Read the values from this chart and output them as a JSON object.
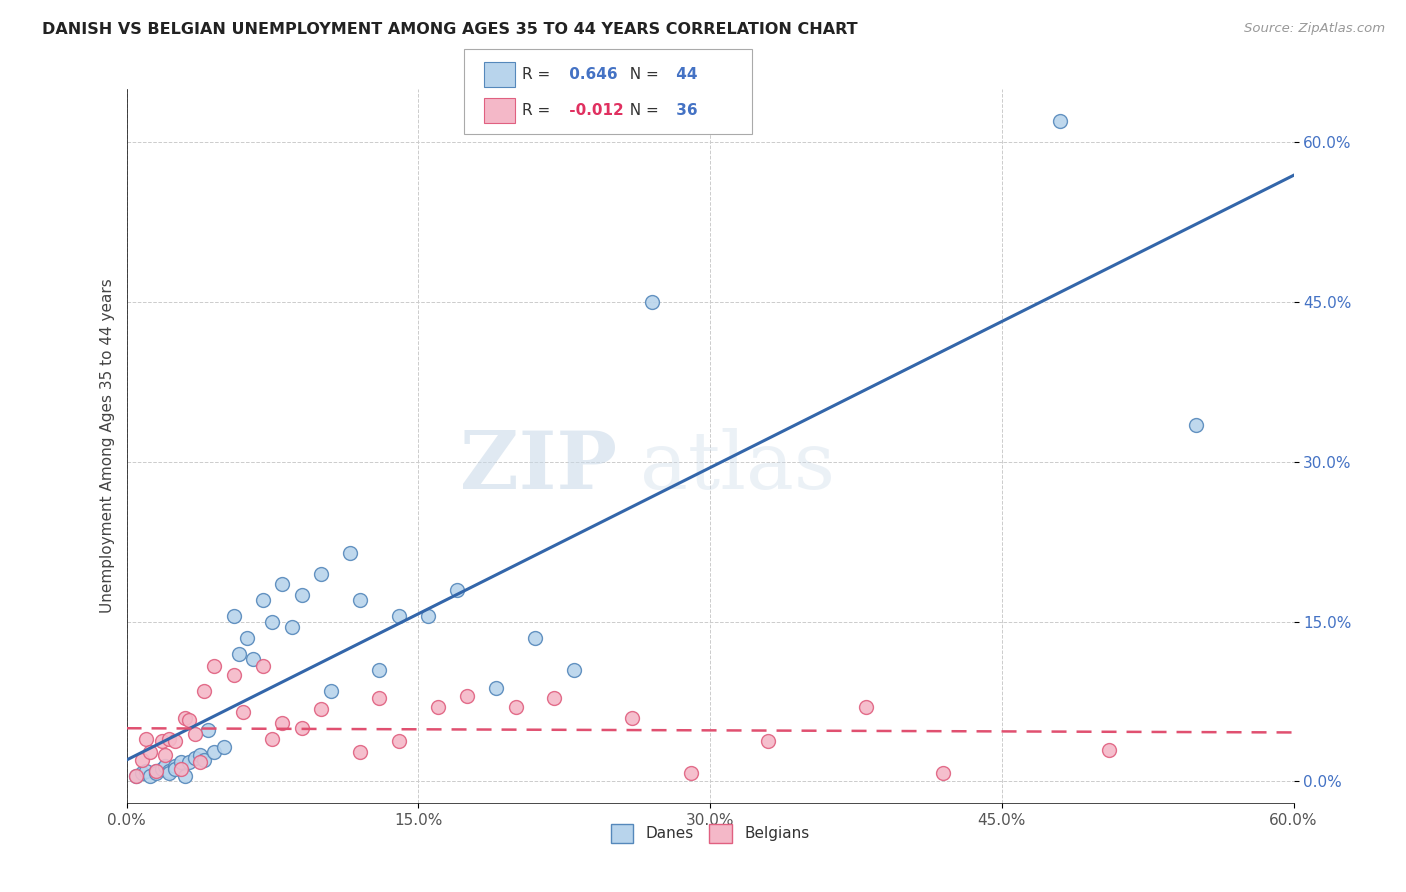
{
  "title": "DANISH VS BELGIAN UNEMPLOYMENT AMONG AGES 35 TO 44 YEARS CORRELATION CHART",
  "source": "Source: ZipAtlas.com",
  "ylabel": "Unemployment Among Ages 35 to 44 years",
  "xlim": [
    0.0,
    0.6
  ],
  "ylim": [
    -0.02,
    0.65
  ],
  "yticks": [
    0.0,
    0.15,
    0.3,
    0.45,
    0.6
  ],
  "xticks": [
    0.0,
    0.15,
    0.3,
    0.45,
    0.6
  ],
  "danes_R": 0.646,
  "danes_N": 44,
  "belgians_R": -0.012,
  "belgians_N": 36,
  "danes_color": "#b8d4ec",
  "belgians_color": "#f4b8c8",
  "danes_edge_color": "#5588bb",
  "belgians_edge_color": "#e06080",
  "danes_line_color": "#3366aa",
  "belgians_line_color": "#e05070",
  "ytick_color": "#4472c4",
  "xtick_color": "#555555",
  "watermark_zip": "ZIP",
  "watermark_atlas": "atlas",
  "danes_x": [
    0.005,
    0.008,
    0.01,
    0.012,
    0.015,
    0.015,
    0.018,
    0.02,
    0.022,
    0.022,
    0.025,
    0.025,
    0.028,
    0.03,
    0.032,
    0.035,
    0.038,
    0.04,
    0.042,
    0.045,
    0.05,
    0.055,
    0.058,
    0.062,
    0.065,
    0.07,
    0.075,
    0.08,
    0.085,
    0.09,
    0.1,
    0.105,
    0.115,
    0.12,
    0.13,
    0.14,
    0.155,
    0.17,
    0.19,
    0.21,
    0.23,
    0.27,
    0.48,
    0.55
  ],
  "danes_y": [
    0.005,
    0.008,
    0.01,
    0.005,
    0.01,
    0.008,
    0.012,
    0.015,
    0.01,
    0.008,
    0.015,
    0.012,
    0.018,
    0.005,
    0.018,
    0.022,
    0.025,
    0.02,
    0.048,
    0.028,
    0.032,
    0.155,
    0.12,
    0.135,
    0.115,
    0.17,
    0.15,
    0.185,
    0.145,
    0.175,
    0.195,
    0.085,
    0.215,
    0.17,
    0.105,
    0.155,
    0.155,
    0.18,
    0.088,
    0.135,
    0.105,
    0.45,
    0.62,
    0.335
  ],
  "belgians_x": [
    0.005,
    0.008,
    0.01,
    0.012,
    0.015,
    0.018,
    0.02,
    0.022,
    0.025,
    0.028,
    0.03,
    0.032,
    0.035,
    0.038,
    0.04,
    0.045,
    0.055,
    0.06,
    0.07,
    0.075,
    0.08,
    0.09,
    0.1,
    0.12,
    0.13,
    0.14,
    0.16,
    0.175,
    0.2,
    0.22,
    0.26,
    0.29,
    0.33,
    0.38,
    0.42,
    0.505
  ],
  "belgians_y": [
    0.005,
    0.02,
    0.04,
    0.028,
    0.01,
    0.038,
    0.025,
    0.04,
    0.038,
    0.012,
    0.06,
    0.058,
    0.045,
    0.018,
    0.085,
    0.108,
    0.1,
    0.065,
    0.108,
    0.04,
    0.055,
    0.05,
    0.068,
    0.028,
    0.078,
    0.038,
    0.07,
    0.08,
    0.07,
    0.078,
    0.06,
    0.008,
    0.038,
    0.07,
    0.008,
    0.03
  ]
}
